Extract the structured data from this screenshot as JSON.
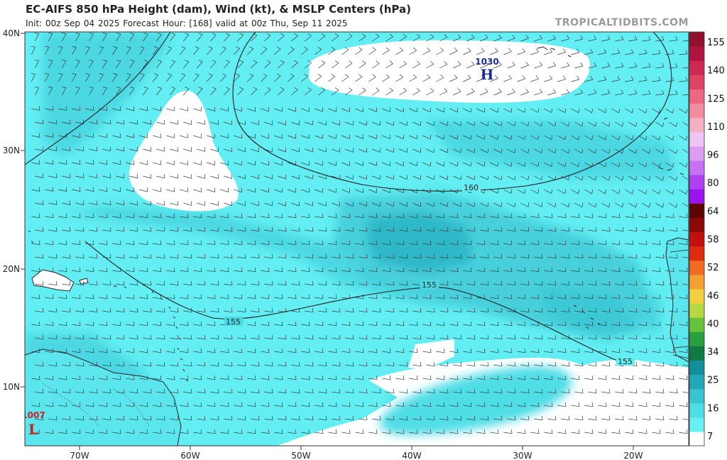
{
  "header": {
    "title": "EC-AIFS 850 hPa Height (dam), Wind (kt), & MSLP Centers (hPa)",
    "subtitle": "Init: 00z Sep 04 2025   Forecast Hour: [168]   valid at 00z Thu, Sep 11 2025",
    "credit": "TROPICALTIDBITS.COM"
  },
  "axes": {
    "lat_labels": [
      "40N",
      "30N",
      "20N",
      "10N"
    ],
    "lon_labels": [
      "70W",
      "60W",
      "50W",
      "40W",
      "30W",
      "20W"
    ]
  },
  "contours": [
    {
      "value": 160,
      "label": "160"
    },
    {
      "value": 155,
      "label": "155"
    }
  ],
  "pressure_centers": [
    {
      "type": "H",
      "value": "1030",
      "color": "#1a2a9c"
    },
    {
      "type": "L",
      "value": "1007",
      "color": "#cc2222"
    }
  ],
  "colorbar": {
    "ticks": [
      "155",
      "140",
      "125",
      "110",
      "96",
      "80",
      "64",
      "58",
      "52",
      "46",
      "40",
      "34",
      "25",
      "16",
      "7"
    ],
    "colors": [
      "#ffffff",
      "#66f0f4",
      "#4fdde6",
      "#39c4d2",
      "#23a8b8",
      "#138e9a",
      "#0f7a44",
      "#27a040",
      "#66c23a",
      "#b6d840",
      "#f0d040",
      "#f4a030",
      "#f06a20",
      "#e02a10",
      "#c01010",
      "#8a0808",
      "#5a0404",
      "#9a14f0",
      "#b040f4",
      "#c670f4",
      "#dc9cf4",
      "#f0c4f4",
      "#f4b0c4",
      "#f08ca0",
      "#ea6880",
      "#e04464",
      "#cc2a50",
      "#b01440",
      "#901030"
    ]
  }
}
